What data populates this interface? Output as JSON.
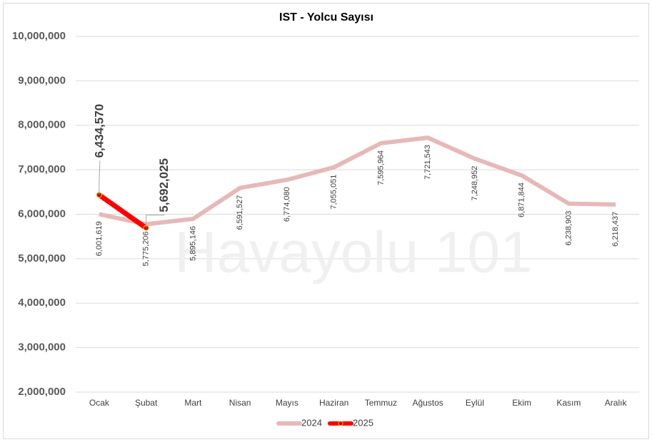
{
  "chart_data": {
    "type": "line",
    "title": "IST - Yolcu Sayısı",
    "watermark": "Havayolu 101",
    "categories": [
      "Ocak",
      "Şubat",
      "Mart",
      "Nisan",
      "Mayıs",
      "Haziran",
      "Temmuz",
      "Ağustos",
      "Eylül",
      "Ekim",
      "Kasım",
      "Aralık"
    ],
    "series": [
      {
        "name": "2024",
        "color": "#e6b9b8",
        "values": [
          6001619,
          5775206,
          5895146,
          6591527,
          6774080,
          7055051,
          7595964,
          7721543,
          7248952,
          6871844,
          6238903,
          6218437
        ],
        "value_labels": [
          "6,001,619",
          "5,775,206",
          "5,895,146",
          "6,591,527",
          "6,774,080",
          "7,055,051",
          "7,595,964",
          "7,721,543",
          "7,248,952",
          "6,871,844",
          "6,238,903",
          "6,218,437"
        ]
      },
      {
        "name": "2025",
        "color": "#ff0000",
        "values": [
          6434570,
          5692025,
          null,
          null,
          null,
          null,
          null,
          null,
          null,
          null,
          null,
          null
        ],
        "value_labels": [
          "6,434,570",
          "5,692,025",
          null,
          null,
          null,
          null,
          null,
          null,
          null,
          null,
          null,
          null
        ]
      }
    ],
    "ylim": [
      2000000,
      10000000
    ],
    "yticks": [
      {
        "value": 2000000,
        "label": "2,000,000"
      },
      {
        "value": 3000000,
        "label": "3,000,000"
      },
      {
        "value": 4000000,
        "label": "4,000,000"
      },
      {
        "value": 5000000,
        "label": "5,000,000"
      },
      {
        "value": 6000000,
        "label": "6,000,000"
      },
      {
        "value": 7000000,
        "label": "7,000,000"
      },
      {
        "value": 8000000,
        "label": "8,000,000"
      },
      {
        "value": 9000000,
        "label": "9,000,000"
      },
      {
        "value": 10000000,
        "label": "10,000,000"
      }
    ],
    "grid": true,
    "legend": "bottom"
  }
}
